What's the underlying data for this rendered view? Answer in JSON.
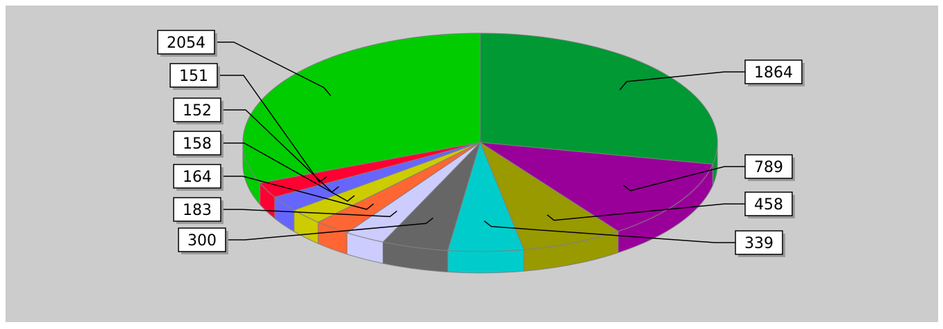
{
  "chart_data": {
    "type": "pie",
    "style": "3d",
    "title": "",
    "slices": [
      {
        "value": 1864,
        "label": "1864",
        "color": "#009933"
      },
      {
        "value": 789,
        "label": "789",
        "color": "#990099"
      },
      {
        "value": 458,
        "label": "458",
        "color": "#999900"
      },
      {
        "value": 339,
        "label": "339",
        "color": "#00cccc"
      },
      {
        "value": 300,
        "label": "300",
        "color": "#666666"
      },
      {
        "value": 183,
        "label": "183",
        "color": "#ccccff"
      },
      {
        "value": 164,
        "label": "164",
        "color": "#ff6633"
      },
      {
        "value": 158,
        "label": "158",
        "color": "#cccc00"
      },
      {
        "value": 152,
        "label": "152",
        "color": "#6666ff"
      },
      {
        "value": 151,
        "label": "151",
        "color": "#ff0033"
      },
      {
        "value": 2054,
        "label": "2054",
        "color": "#00cc00"
      }
    ],
    "background_color": "#cccccc",
    "legend": "none"
  }
}
